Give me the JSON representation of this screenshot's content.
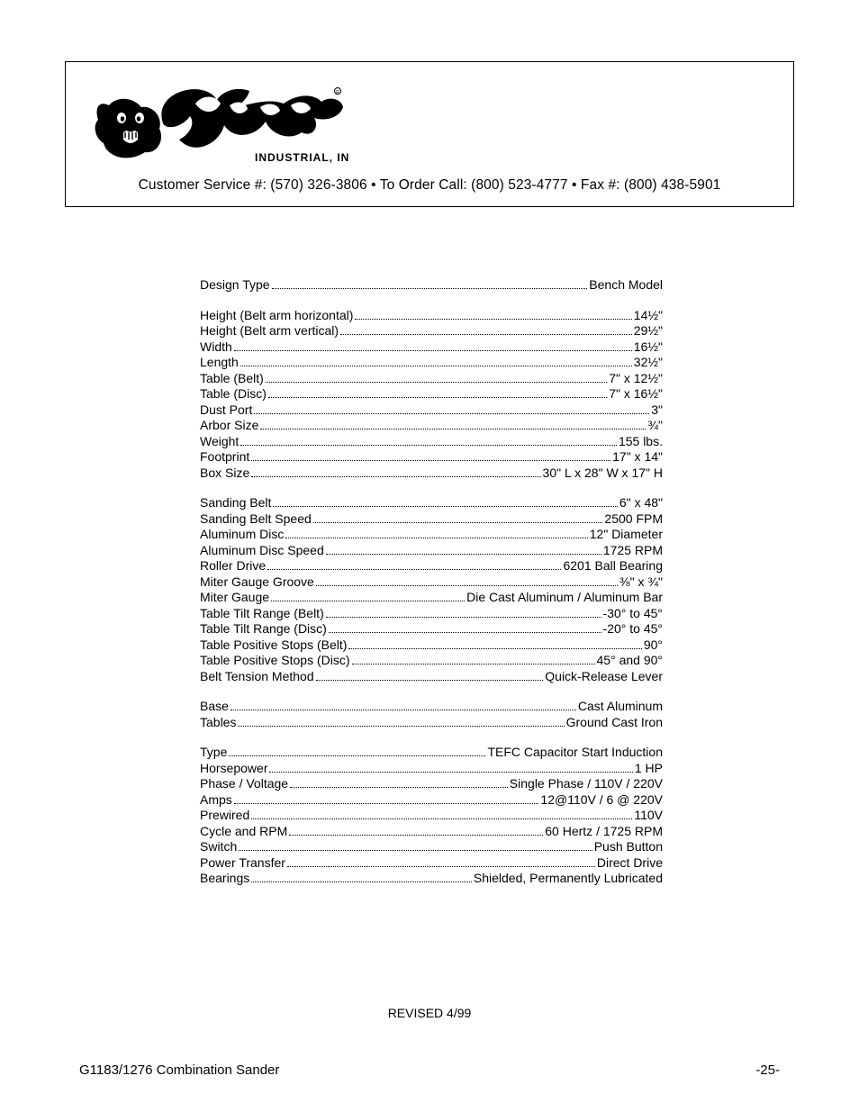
{
  "header": {
    "brand_text": "Grizzly",
    "brand_subtext": "INDUSTRIAL, INC",
    "contact": "Customer Service #: (570) 326-3806 • To Order Call: (800) 523-4777 • Fax #: (800) 438-5901"
  },
  "spec_groups": [
    [
      {
        "label": "Design Type ",
        "value": "Bench Model"
      }
    ],
    [
      {
        "label": "Height (Belt arm horizontal) ",
        "value": "14½\""
      },
      {
        "label": "Height (Belt arm vertical) ",
        "value": "29½\""
      },
      {
        "label": "Width",
        "value": "16½\""
      },
      {
        "label": "Length",
        "value": "32½\""
      },
      {
        "label": "Table (Belt) ",
        "value": "7\" x 12½\""
      },
      {
        "label": "Table (Disc)",
        "value": "7\" x 16½\""
      },
      {
        "label": "Dust Port ",
        "value": "3\""
      },
      {
        "label": "Arbor Size",
        "value": "¾\""
      },
      {
        "label": "Weight ",
        "value": "155 lbs."
      },
      {
        "label": "Footprint",
        "value": "17\" x 14\""
      },
      {
        "label": "Box Size",
        "value": "30\" L x 28\" W x 17\" H"
      }
    ],
    [
      {
        "label": "Sanding Belt",
        "value": "6\" x 48\""
      },
      {
        "label": "Sanding Belt Speed ",
        "value": "2500 FPM"
      },
      {
        "label": "Aluminum Disc",
        "value": "12\" Diameter"
      },
      {
        "label": "Aluminum Disc Speed ",
        "value": "1725 RPM"
      },
      {
        "label": "Roller Drive",
        "value": "6201 Ball Bearing"
      },
      {
        "label": "Miter Gauge Groove",
        "value": "⅜\" x ¾\""
      },
      {
        "label": "Miter Gauge ",
        "value": "Die Cast Aluminum / Aluminum Bar"
      },
      {
        "label": "Table Tilt Range (Belt) ",
        "value": "-30° to 45°"
      },
      {
        "label": "Table Tilt Range (Disc) ",
        "value": "-20° to 45°"
      },
      {
        "label": "Table Positive Stops (Belt) ",
        "value": "90°"
      },
      {
        "label": "Table Positive Stops (Disc) ",
        "value": "45° and 90°"
      },
      {
        "label": "Belt Tension Method ",
        "value": "Quick-Release Lever"
      }
    ],
    [
      {
        "label": "Base ",
        "value": "Cast Aluminum"
      },
      {
        "label": "Tables ",
        "value": "Ground Cast Iron"
      }
    ],
    [
      {
        "label": "Type ",
        "value": "TEFC Capacitor Start Induction"
      },
      {
        "label": "Horsepower",
        "value": "1 HP"
      },
      {
        "label": "Phase  / Voltage",
        "value": " Single Phase / 110V / 220V"
      },
      {
        "label": "Amps ",
        "value": "12@110V / 6 @ 220V"
      },
      {
        "label": "Prewired ",
        "value": "110V"
      },
      {
        "label": "Cycle and RPM ",
        "value": "60 Hertz / 1725 RPM"
      },
      {
        "label": "Switch ",
        "value": "Push Button"
      },
      {
        "label": "Power Transfer  ",
        "value": "Direct Drive"
      },
      {
        "label": "Bearings ",
        "value": "Shielded, Permanently Lubricated"
      }
    ]
  ],
  "footer": {
    "revised": "REVISED 4/99",
    "left": "G1183/1276 Combination Sander",
    "right": "-25-"
  }
}
